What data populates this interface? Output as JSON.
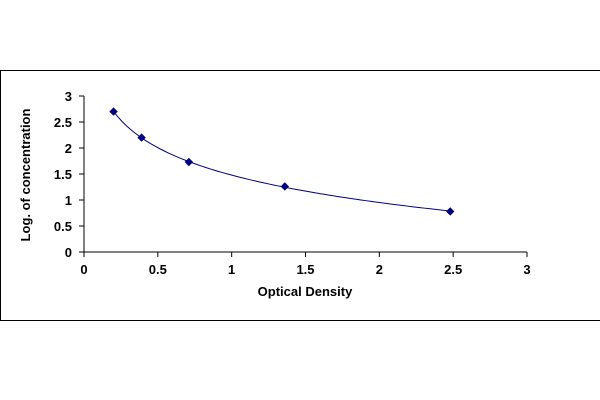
{
  "chart_data": {
    "type": "scatter",
    "title": "",
    "xlabel": "Optical Density",
    "ylabel": "Log. of concentration",
    "xlim": [
      0,
      3
    ],
    "ylim": [
      0,
      3
    ],
    "x_ticks": [
      "0",
      "0.5",
      "1",
      "1.5",
      "2",
      "2.5",
      "3"
    ],
    "y_ticks": [
      "0",
      "0.5",
      "1",
      "1.5",
      "2",
      "2.5",
      "3"
    ],
    "grid": false,
    "legend": "none",
    "series": [
      {
        "x": [
          0.2,
          0.39,
          0.71,
          1.36,
          2.48
        ],
        "y": [
          2.7,
          2.2,
          1.73,
          1.26,
          0.78
        ],
        "marker": "diamond",
        "color": "#000080"
      }
    ],
    "trendline": {
      "fit": "logarithmic",
      "color": "#000080"
    }
  }
}
